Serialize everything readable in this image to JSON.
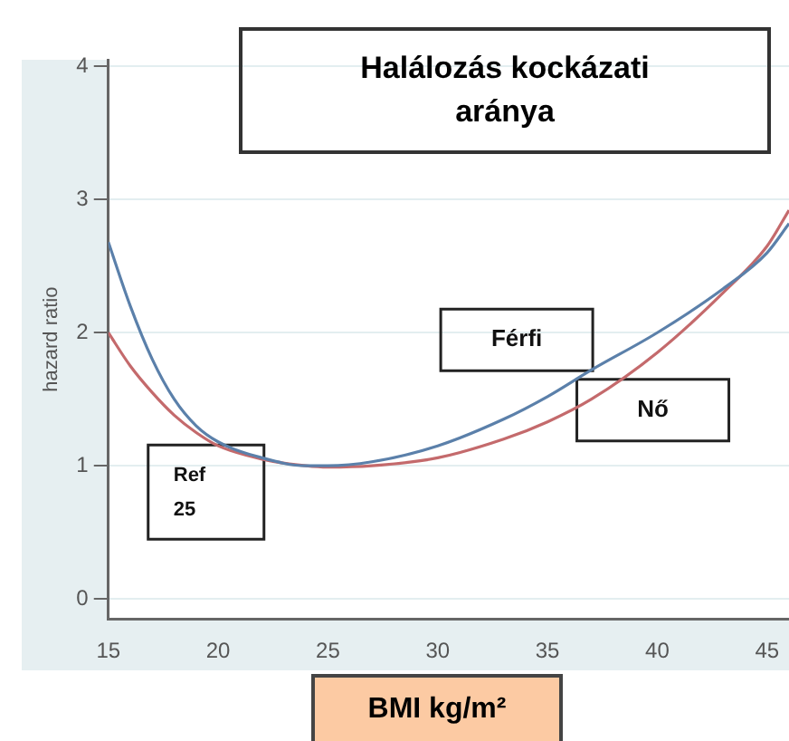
{
  "chart_data": {
    "type": "line",
    "title": "Halálozás kockázati aránya",
    "xlabel": "BMI kg/m²",
    "ylabel": "hazard ratio",
    "x": [
      15,
      16,
      17,
      18,
      19,
      20,
      22,
      24,
      25,
      27,
      30,
      33,
      35,
      37,
      40,
      43,
      45,
      46
    ],
    "series": [
      {
        "name": "Férfi",
        "color": "#5b80aa",
        "values": [
          2.68,
          2.2,
          1.8,
          1.5,
          1.3,
          1.18,
          1.06,
          1.0,
          1.0,
          1.03,
          1.15,
          1.35,
          1.52,
          1.72,
          2.0,
          2.33,
          2.6,
          2.82
        ]
      },
      {
        "name": "Nő",
        "color": "#c46a6c",
        "values": [
          2.0,
          1.75,
          1.55,
          1.38,
          1.25,
          1.15,
          1.05,
          1.0,
          0.99,
          1.0,
          1.06,
          1.2,
          1.33,
          1.5,
          1.85,
          2.3,
          2.65,
          2.92
        ]
      }
    ],
    "annotations": [
      "Ref\n25"
    ],
    "xlim": [
      15,
      46
    ],
    "xticks": [
      15,
      20,
      25,
      30,
      35,
      40,
      45
    ],
    "ylim": [
      -0.15,
      4.05
    ],
    "yticks": [
      0,
      1,
      2,
      3,
      4
    ],
    "grid": "y",
    "legend": false,
    "marker": "none",
    "line_style": "solid"
  }
}
